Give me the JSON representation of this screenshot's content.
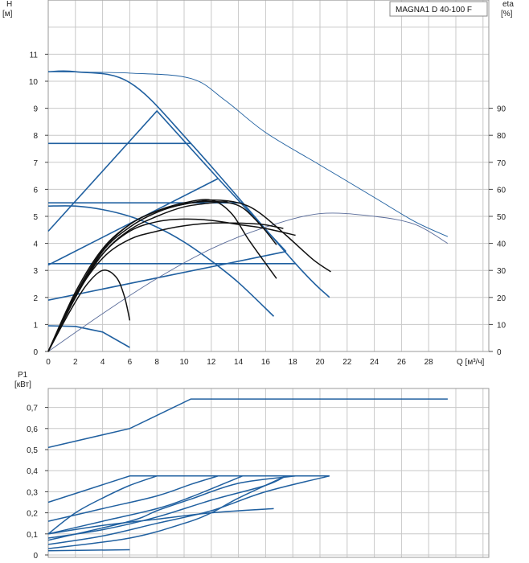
{
  "chart_data": [
    {
      "type": "line",
      "title": "MAGNA1 D 40-100 F",
      "x_axis": {
        "label": "Q [м³/ч]",
        "ticks": [
          "0",
          "2",
          "4",
          "6",
          "8",
          "10",
          "12",
          "14",
          "16",
          "18",
          "20",
          "22",
          "24",
          "26",
          "28"
        ],
        "range": [
          0,
          32
        ]
      },
      "y_axis_left": {
        "label_top": "H",
        "label_unit": "[м]",
        "ticks": [
          "0",
          "1",
          "2",
          "3",
          "4",
          "5",
          "6",
          "7",
          "8",
          "9",
          "10",
          "11"
        ],
        "range": [
          0,
          13
        ]
      },
      "y_axis_right": {
        "label_top": "eta",
        "label_unit": "[%]",
        "ticks": [
          "0",
          "10",
          "20",
          "30",
          "40",
          "50",
          "60",
          "70",
          "80",
          "90"
        ],
        "range": [
          0,
          130
        ]
      },
      "grid": true,
      "head_curves": [
        {
          "name": "",
          "color": "#2060a0",
          "points": [
            [
              0,
              10.35
            ],
            [
              2,
              10.35
            ],
            [
              6,
              9.95
            ],
            [
              10.5,
              7.7
            ],
            [
              18.2,
              3.25
            ],
            [
              20.7,
              2.0
            ]
          ]
        },
        {
          "name": "",
          "color": "#2060a0",
          "points": [
            [
              0,
              7.7
            ],
            [
              10.5,
              7.7
            ]
          ]
        },
        {
          "name": "",
          "color": "#2060a0",
          "points": [
            [
              0,
              5.5
            ],
            [
              14.3,
              5.5
            ]
          ]
        },
        {
          "name": "",
          "color": "#2060a0",
          "points": [
            [
              0,
              3.25
            ],
            [
              18.2,
              3.25
            ]
          ]
        },
        {
          "name": "",
          "color": "#2060a0",
          "points": [
            [
              0,
              4.45
            ],
            [
              8,
              8.9
            ],
            [
              12.5,
              6.4
            ],
            [
              17.5,
              3.7
            ]
          ]
        },
        {
          "name": "",
          "color": "#2060a0",
          "points": [
            [
              0,
              3.2
            ],
            [
              12.5,
              6.4
            ]
          ]
        },
        {
          "name": "",
          "color": "#2060a0",
          "points": [
            [
              0,
              1.9
            ],
            [
              17.5,
              3.7
            ]
          ]
        },
        {
          "name": "",
          "color": "#2060a0",
          "points": [
            [
              0,
              5.38
            ],
            [
              2,
              5.38
            ],
            [
              4,
              5.25
            ],
            [
              6,
              5.0
            ],
            [
              8,
              4.6
            ],
            [
              10,
              4.05
            ],
            [
              12,
              3.35
            ],
            [
              14,
              2.55
            ],
            [
              16.6,
              1.3
            ]
          ]
        },
        {
          "name": "",
          "color": "#2060a0",
          "points": [
            [
              0,
              0.95
            ],
            [
              2,
              0.93
            ],
            [
              4,
              0.72
            ],
            [
              6,
              0.15
            ]
          ]
        }
      ],
      "efficiency_curves": [
        {
          "name": "",
          "color": "#2060a0",
          "points": [
            [
              0,
              103.5
            ],
            [
              6,
              103
            ],
            [
              10.5,
              101
            ],
            [
              13,
              93
            ],
            [
              16,
              81
            ],
            [
              20,
              69
            ],
            [
              24,
              57
            ],
            [
              27,
              48
            ],
            [
              29.4,
              42.5
            ]
          ]
        },
        {
          "name": "",
          "color": "#5a6c9a",
          "points": [
            [
              0,
              0
            ],
            [
              4,
              14
            ],
            [
              8,
              27
            ],
            [
              12,
              38
            ],
            [
              16,
              46
            ],
            [
              20,
              51
            ],
            [
              24,
              50
            ],
            [
              27,
              47
            ],
            [
              29.4,
              40
            ]
          ]
        }
      ],
      "operating_curves": [
        {
          "name": "",
          "color": "#111111",
          "points": [
            [
              0,
              0
            ],
            [
              2,
              2.2
            ],
            [
              4,
              3.8
            ],
            [
              6,
              4.7
            ],
            [
              8,
              5.2
            ],
            [
              10,
              5.45
            ],
            [
              12,
              5.6
            ],
            [
              14,
              5.5
            ],
            [
              15.5,
              5.15
            ],
            [
              17.5,
              4.3
            ],
            [
              19.5,
              3.4
            ],
            [
              20.8,
              2.95
            ]
          ]
        },
        {
          "name": "",
          "color": "#111111",
          "points": [
            [
              0,
              0
            ],
            [
              2,
              2.1
            ],
            [
              4,
              3.6
            ],
            [
              6,
              4.45
            ],
            [
              8,
              4.8
            ],
            [
              10,
              4.9
            ],
            [
              12,
              4.85
            ],
            [
              14,
              4.7
            ],
            [
              16,
              4.55
            ],
            [
              18.2,
              4.3
            ]
          ]
        },
        {
          "name": "",
          "color": "#111111",
          "points": [
            [
              0,
              0
            ],
            [
              2,
              2.05
            ],
            [
              4,
              3.45
            ],
            [
              6,
              4.15
            ],
            [
              8,
              4.45
            ],
            [
              10,
              4.65
            ],
            [
              12,
              4.75
            ],
            [
              14,
              4.75
            ],
            [
              15.8,
              4.7
            ],
            [
              17.3,
              4.55
            ]
          ]
        },
        {
          "name": "",
          "color": "#111111",
          "points": [
            [
              0,
              0
            ],
            [
              2,
              2.0
            ],
            [
              4,
              3.7
            ],
            [
              6,
              4.6
            ],
            [
              8,
              5.15
            ],
            [
              10,
              5.45
            ],
            [
              12,
              5.55
            ],
            [
              14,
              5.4
            ],
            [
              15.5,
              4.75
            ],
            [
              16.8,
              3.95
            ]
          ]
        },
        {
          "name": "",
          "color": "#111111",
          "points": [
            [
              0,
              0
            ],
            [
              2,
              2.1
            ],
            [
              4,
              3.75
            ],
            [
              6,
              4.7
            ],
            [
              8,
              5.2
            ],
            [
              10,
              5.5
            ],
            [
              12,
              5.6
            ],
            [
              13.5,
              5.1
            ],
            [
              14.8,
              4.1
            ],
            [
              16.8,
              2.7
            ]
          ]
        },
        {
          "name": "",
          "color": "#111111",
          "points": [
            [
              0,
              0
            ],
            [
              1.5,
              1.4
            ],
            [
              2.8,
              2.45
            ],
            [
              4,
              3.0
            ],
            [
              5,
              2.75
            ],
            [
              5.6,
              2.05
            ],
            [
              6,
              1.15
            ]
          ]
        },
        {
          "name": "",
          "color": "#111111",
          "points": [
            [
              0,
              0
            ],
            [
              2,
              2.0
            ],
            [
              4,
              3.6
            ],
            [
              6,
              4.5
            ],
            [
              8,
              5.0
            ],
            [
              10,
              5.35
            ],
            [
              12,
              5.5
            ],
            [
              13.2,
              5.55
            ]
          ]
        }
      ]
    },
    {
      "type": "line",
      "title": "",
      "x_axis": {
        "label": "",
        "range": [
          0,
          32
        ]
      },
      "y_axis_left": {
        "label_top": "P1",
        "label_unit": "[кВт]",
        "ticks": [
          "0",
          "0,1",
          "0,2",
          "0,3",
          "0,4",
          "0,5",
          "0,6",
          "0,7"
        ],
        "range": [
          0,
          0.8
        ]
      },
      "grid": true,
      "power_curves": [
        {
          "name": "",
          "color": "#2060a0",
          "points": [
            [
              0,
              0.51
            ],
            [
              6,
              0.6
            ],
            [
              10.5,
              0.74
            ],
            [
              29.4,
              0.74
            ]
          ]
        },
        {
          "name": "",
          "color": "#2060a0",
          "points": [
            [
              0,
              0.25
            ],
            [
              6,
              0.375
            ],
            [
              20.7,
              0.375
            ]
          ]
        },
        {
          "name": "",
          "color": "#2060a0",
          "points": [
            [
              0,
              0.16
            ],
            [
              4,
              0.22
            ],
            [
              8,
              0.28
            ],
            [
              10.5,
              0.335
            ],
            [
              12.5,
              0.375
            ]
          ]
        },
        {
          "name": "",
          "color": "#2060a0",
          "points": [
            [
              0,
              0.1
            ],
            [
              4,
              0.16
            ],
            [
              8,
              0.22
            ],
            [
              10.5,
              0.275
            ],
            [
              14.3,
              0.375
            ]
          ]
        },
        {
          "name": "",
          "color": "#2060a0",
          "points": [
            [
              0,
              0.07
            ],
            [
              6,
              0.16
            ],
            [
              8,
              0.21
            ],
            [
              10.5,
              0.265
            ],
            [
              14,
              0.34
            ],
            [
              18.2,
              0.375
            ]
          ]
        },
        {
          "name": "",
          "color": "#2060a0",
          "points": [
            [
              0,
              0.08
            ],
            [
              4,
              0.12
            ],
            [
              8,
              0.18
            ],
            [
              12,
              0.26
            ],
            [
              16,
              0.33
            ],
            [
              17.5,
              0.375
            ]
          ]
        },
        {
          "name": "",
          "color": "#2060a0",
          "points": [
            [
              0,
              0.1
            ],
            [
              4,
              0.14
            ],
            [
              8,
              0.17
            ],
            [
              12,
              0.2
            ],
            [
              16.6,
              0.22
            ]
          ]
        },
        {
          "name": "",
          "color": "#2060a0",
          "points": [
            [
              0,
              0.05
            ],
            [
              4,
              0.09
            ],
            [
              8,
              0.15
            ],
            [
              12,
              0.21
            ],
            [
              16,
              0.3
            ],
            [
              20.7,
              0.375
            ]
          ]
        },
        {
          "name": "",
          "color": "#2060a0",
          "points": [
            [
              0,
              0.03
            ],
            [
              6,
              0.08
            ],
            [
              10,
              0.15
            ],
            [
              12,
              0.2
            ],
            [
              14,
              0.27
            ],
            [
              17.5,
              0.375
            ]
          ]
        },
        {
          "name": "",
          "color": "#2060a0",
          "points": [
            [
              0,
              0.02
            ],
            [
              6,
              0.025
            ]
          ]
        },
        {
          "name": "",
          "color": "#2060a0",
          "points": [
            [
              0,
              0.1
            ],
            [
              2,
              0.2
            ],
            [
              4,
              0.27
            ],
            [
              6,
              0.33
            ],
            [
              8,
              0.375
            ]
          ]
        }
      ]
    }
  ]
}
